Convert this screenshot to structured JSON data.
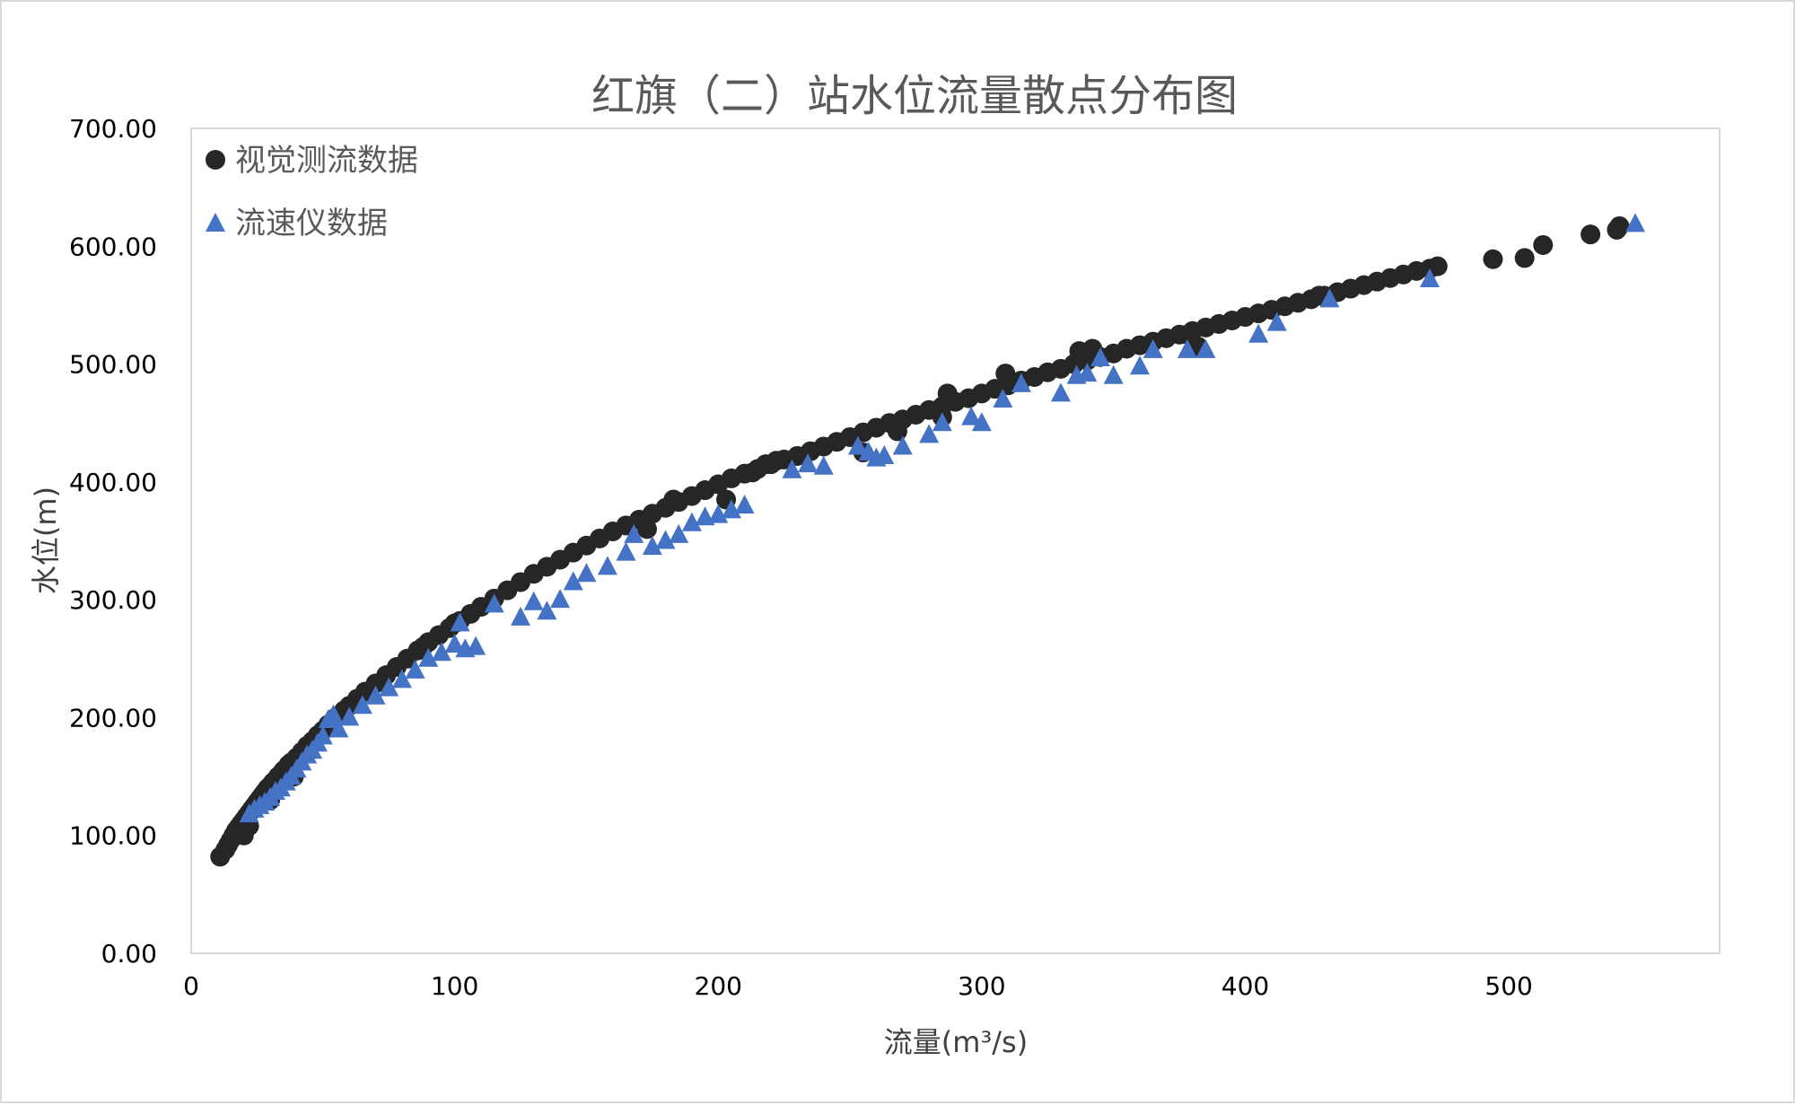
{
  "chart_data": {
    "type": "scatter",
    "title": "红旗（二）站水位流量散点分布图",
    "xlabel": "流量(m³/s)",
    "ylabel": "水位(m)",
    "xlim": [
      0,
      580
    ],
    "ylim": [
      0,
      700
    ],
    "x_ticks": [
      "0",
      "100",
      "200",
      "300",
      "400",
      "500"
    ],
    "x_tick_values": [
      0,
      100,
      200,
      300,
      400,
      500
    ],
    "y_ticks": [
      "0.00",
      "100.00",
      "200.00",
      "300.00",
      "400.00",
      "500.00",
      "600.00",
      "700.00"
    ],
    "y_tick_values": [
      0,
      100,
      200,
      300,
      400,
      500,
      600,
      700
    ],
    "grid": false,
    "legend_position": "top-left",
    "series": [
      {
        "name": "视觉测流数据",
        "marker": "circle",
        "color": "#262626",
        "x": [
          11,
          13,
          14,
          15,
          16,
          17,
          18,
          19,
          20,
          21,
          22,
          23,
          24,
          25,
          26,
          27,
          28,
          29,
          30,
          31,
          32,
          33,
          34,
          35,
          36,
          37,
          38,
          40,
          42,
          44,
          46,
          48,
          50,
          52,
          55,
          58,
          60,
          63,
          66,
          70,
          74,
          78,
          82,
          86,
          90,
          94,
          98,
          102,
          106,
          110,
          115,
          120,
          125,
          130,
          135,
          140,
          145,
          150,
          155,
          160,
          165,
          170,
          175,
          180,
          185,
          190,
          195,
          200,
          205,
          210,
          215,
          220,
          225,
          230,
          235,
          240,
          245,
          250,
          255,
          260,
          265,
          270,
          275,
          280,
          285,
          290,
          295,
          300,
          305,
          310,
          315,
          320,
          325,
          330,
          335,
          340,
          345,
          350,
          355,
          360,
          365,
          370,
          375,
          380,
          385,
          390,
          395,
          400,
          405,
          410,
          415,
          420,
          425,
          430,
          435,
          440,
          445,
          450,
          455,
          460,
          465,
          470,
          473,
          494,
          506,
          513,
          531,
          541,
          542,
          268,
          287,
          309,
          285,
          337,
          342,
          378,
          428,
          382,
          213,
          218,
          255,
          222,
          183,
          173,
          203,
          30,
          39,
          20,
          22,
          100,
          88
        ],
        "y": [
          82,
          88,
          92,
          96,
          100,
          104,
          107,
          110,
          113,
          116,
          119,
          122,
          125,
          128,
          131,
          134,
          137,
          140,
          142,
          145,
          147,
          150,
          152,
          155,
          157,
          160,
          162,
          166,
          171,
          176,
          180,
          185,
          189,
          194,
          200,
          206,
          210,
          216,
          222,
          229,
          236,
          243,
          250,
          257,
          264,
          270,
          276,
          282,
          288,
          294,
          301,
          308,
          315,
          322,
          328,
          334,
          340,
          346,
          352,
          358,
          363,
          368,
          373,
          378,
          383,
          388,
          393,
          398,
          403,
          407,
          411,
          415,
          419,
          422,
          426,
          430,
          434,
          438,
          442,
          446,
          450,
          453,
          457,
          461,
          464,
          468,
          471,
          475,
          479,
          482,
          486,
          489,
          493,
          496,
          500,
          503,
          506,
          509,
          513,
          516,
          519,
          522,
          525,
          528,
          531,
          534,
          537,
          540,
          543,
          546,
          549,
          552,
          555,
          558,
          561,
          564,
          567,
          570,
          573,
          576,
          579,
          581,
          583,
          589,
          590,
          601,
          610,
          614,
          617,
          443,
          475,
          492,
          455,
          511,
          513,
          525,
          558,
          515,
          408,
          415,
          425,
          418,
          385,
          360,
          385,
          130,
          150,
          100,
          108,
          280,
          260
        ]
      },
      {
        "name": "流速仪数据",
        "marker": "triangle",
        "color": "#4472c4",
        "x": [
          22,
          24,
          26,
          28,
          30,
          32,
          34,
          36,
          38,
          40,
          42,
          44,
          46,
          48,
          50,
          52,
          54,
          56,
          60,
          65,
          70,
          75,
          80,
          85,
          90,
          95,
          100,
          102,
          104,
          108,
          115,
          125,
          130,
          135,
          140,
          145,
          150,
          158,
          165,
          168,
          175,
          180,
          185,
          190,
          195,
          200,
          205,
          210,
          228,
          234,
          240,
          253,
          257,
          260,
          263,
          270,
          280,
          285,
          296,
          300,
          308,
          315,
          330,
          336,
          340,
          345,
          350,
          360,
          365,
          378,
          385,
          405,
          412,
          432,
          470,
          548
        ],
        "y": [
          118,
          122,
          125,
          128,
          132,
          137,
          140,
          145,
          150,
          156,
          162,
          168,
          172,
          178,
          184,
          198,
          202,
          190,
          200,
          210,
          218,
          225,
          232,
          240,
          250,
          255,
          262,
          280,
          258,
          260,
          296,
          285,
          298,
          290,
          300,
          315,
          322,
          328,
          340,
          355,
          345,
          350,
          355,
          365,
          370,
          372,
          376,
          380,
          410,
          415,
          413,
          430,
          425,
          420,
          422,
          430,
          440,
          450,
          455,
          450,
          470,
          483,
          475,
          490,
          492,
          505,
          490,
          498,
          512,
          512,
          512,
          525,
          535,
          555,
          572,
          619
        ]
      }
    ]
  }
}
